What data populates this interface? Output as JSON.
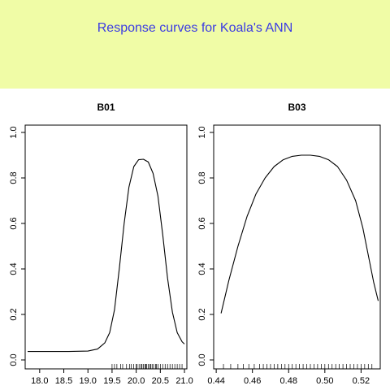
{
  "banner": {
    "title": "Response curves for Koala's ANN",
    "background": "#f0fca6",
    "title_color": "#3b3be3"
  },
  "chart_data": [
    {
      "type": "line",
      "title": "B01",
      "xlabel": "",
      "ylabel": "",
      "xlim": [
        17.7,
        21.05
      ],
      "ylim": [
        0.0,
        1.0
      ],
      "xticks": [
        "18.0",
        "18.5",
        "19.0",
        "19.5",
        "20.0",
        "20.5",
        "21.0"
      ],
      "yticks": [
        "0.0",
        "0.2",
        "0.4",
        "0.6",
        "0.8",
        "1.0"
      ],
      "grid": false,
      "series": [
        {
          "x": [
            17.75,
            18.2,
            18.6,
            19.0,
            19.2,
            19.35,
            19.45,
            19.55,
            19.65,
            19.75,
            19.85,
            19.95,
            20.05,
            20.15,
            20.25,
            20.35,
            20.45,
            20.55,
            20.65,
            20.75,
            20.85,
            20.95,
            21.0
          ],
          "y": [
            0.037,
            0.037,
            0.037,
            0.039,
            0.048,
            0.075,
            0.12,
            0.22,
            0.4,
            0.6,
            0.76,
            0.85,
            0.88,
            0.882,
            0.87,
            0.82,
            0.72,
            0.55,
            0.36,
            0.21,
            0.12,
            0.08,
            0.07
          ]
        }
      ],
      "rug": [
        19.5,
        19.55,
        19.6,
        19.68,
        19.72,
        19.8,
        19.86,
        19.9,
        19.95,
        20.0,
        20.02,
        20.06,
        20.1,
        20.12,
        20.15,
        20.18,
        20.2,
        20.22,
        20.25,
        20.28,
        20.3,
        20.33,
        20.36,
        20.4,
        20.42,
        20.45,
        20.5,
        20.55,
        20.6,
        20.65,
        20.7,
        20.75,
        20.8,
        20.85,
        20.9,
        20.95
      ]
    },
    {
      "type": "line",
      "title": "B03",
      "xlabel": "",
      "ylabel": "",
      "xlim": [
        0.4386,
        0.5306
      ],
      "ylim": [
        0.0,
        1.0
      ],
      "xticks": [
        "0.44",
        "0.46",
        "0.48",
        "0.50",
        "0.52"
      ],
      "yticks": [
        "0.0",
        "0.2",
        "0.4",
        "0.6",
        "0.8",
        "1.0"
      ],
      "grid": false,
      "series": [
        {
          "x": [
            0.4427,
            0.447,
            0.452,
            0.457,
            0.462,
            0.467,
            0.472,
            0.477,
            0.482,
            0.487,
            0.492,
            0.497,
            0.502,
            0.507,
            0.512,
            0.517,
            0.521,
            0.524,
            0.527,
            0.5295
          ],
          "y": [
            0.205,
            0.35,
            0.5,
            0.63,
            0.73,
            0.8,
            0.85,
            0.88,
            0.895,
            0.9,
            0.9,
            0.895,
            0.88,
            0.85,
            0.79,
            0.7,
            0.58,
            0.46,
            0.34,
            0.26
          ]
        }
      ],
      "rug": [
        0.444,
        0.448,
        0.452,
        0.455,
        0.458,
        0.461,
        0.464,
        0.466,
        0.468,
        0.47,
        0.472,
        0.474,
        0.476,
        0.478,
        0.48,
        0.482,
        0.484,
        0.486,
        0.488,
        0.49,
        0.492,
        0.494,
        0.496,
        0.498,
        0.5,
        0.502,
        0.504,
        0.506,
        0.508,
        0.51,
        0.512,
        0.514,
        0.516,
        0.518,
        0.52,
        0.522,
        0.524,
        0.526
      ]
    }
  ]
}
